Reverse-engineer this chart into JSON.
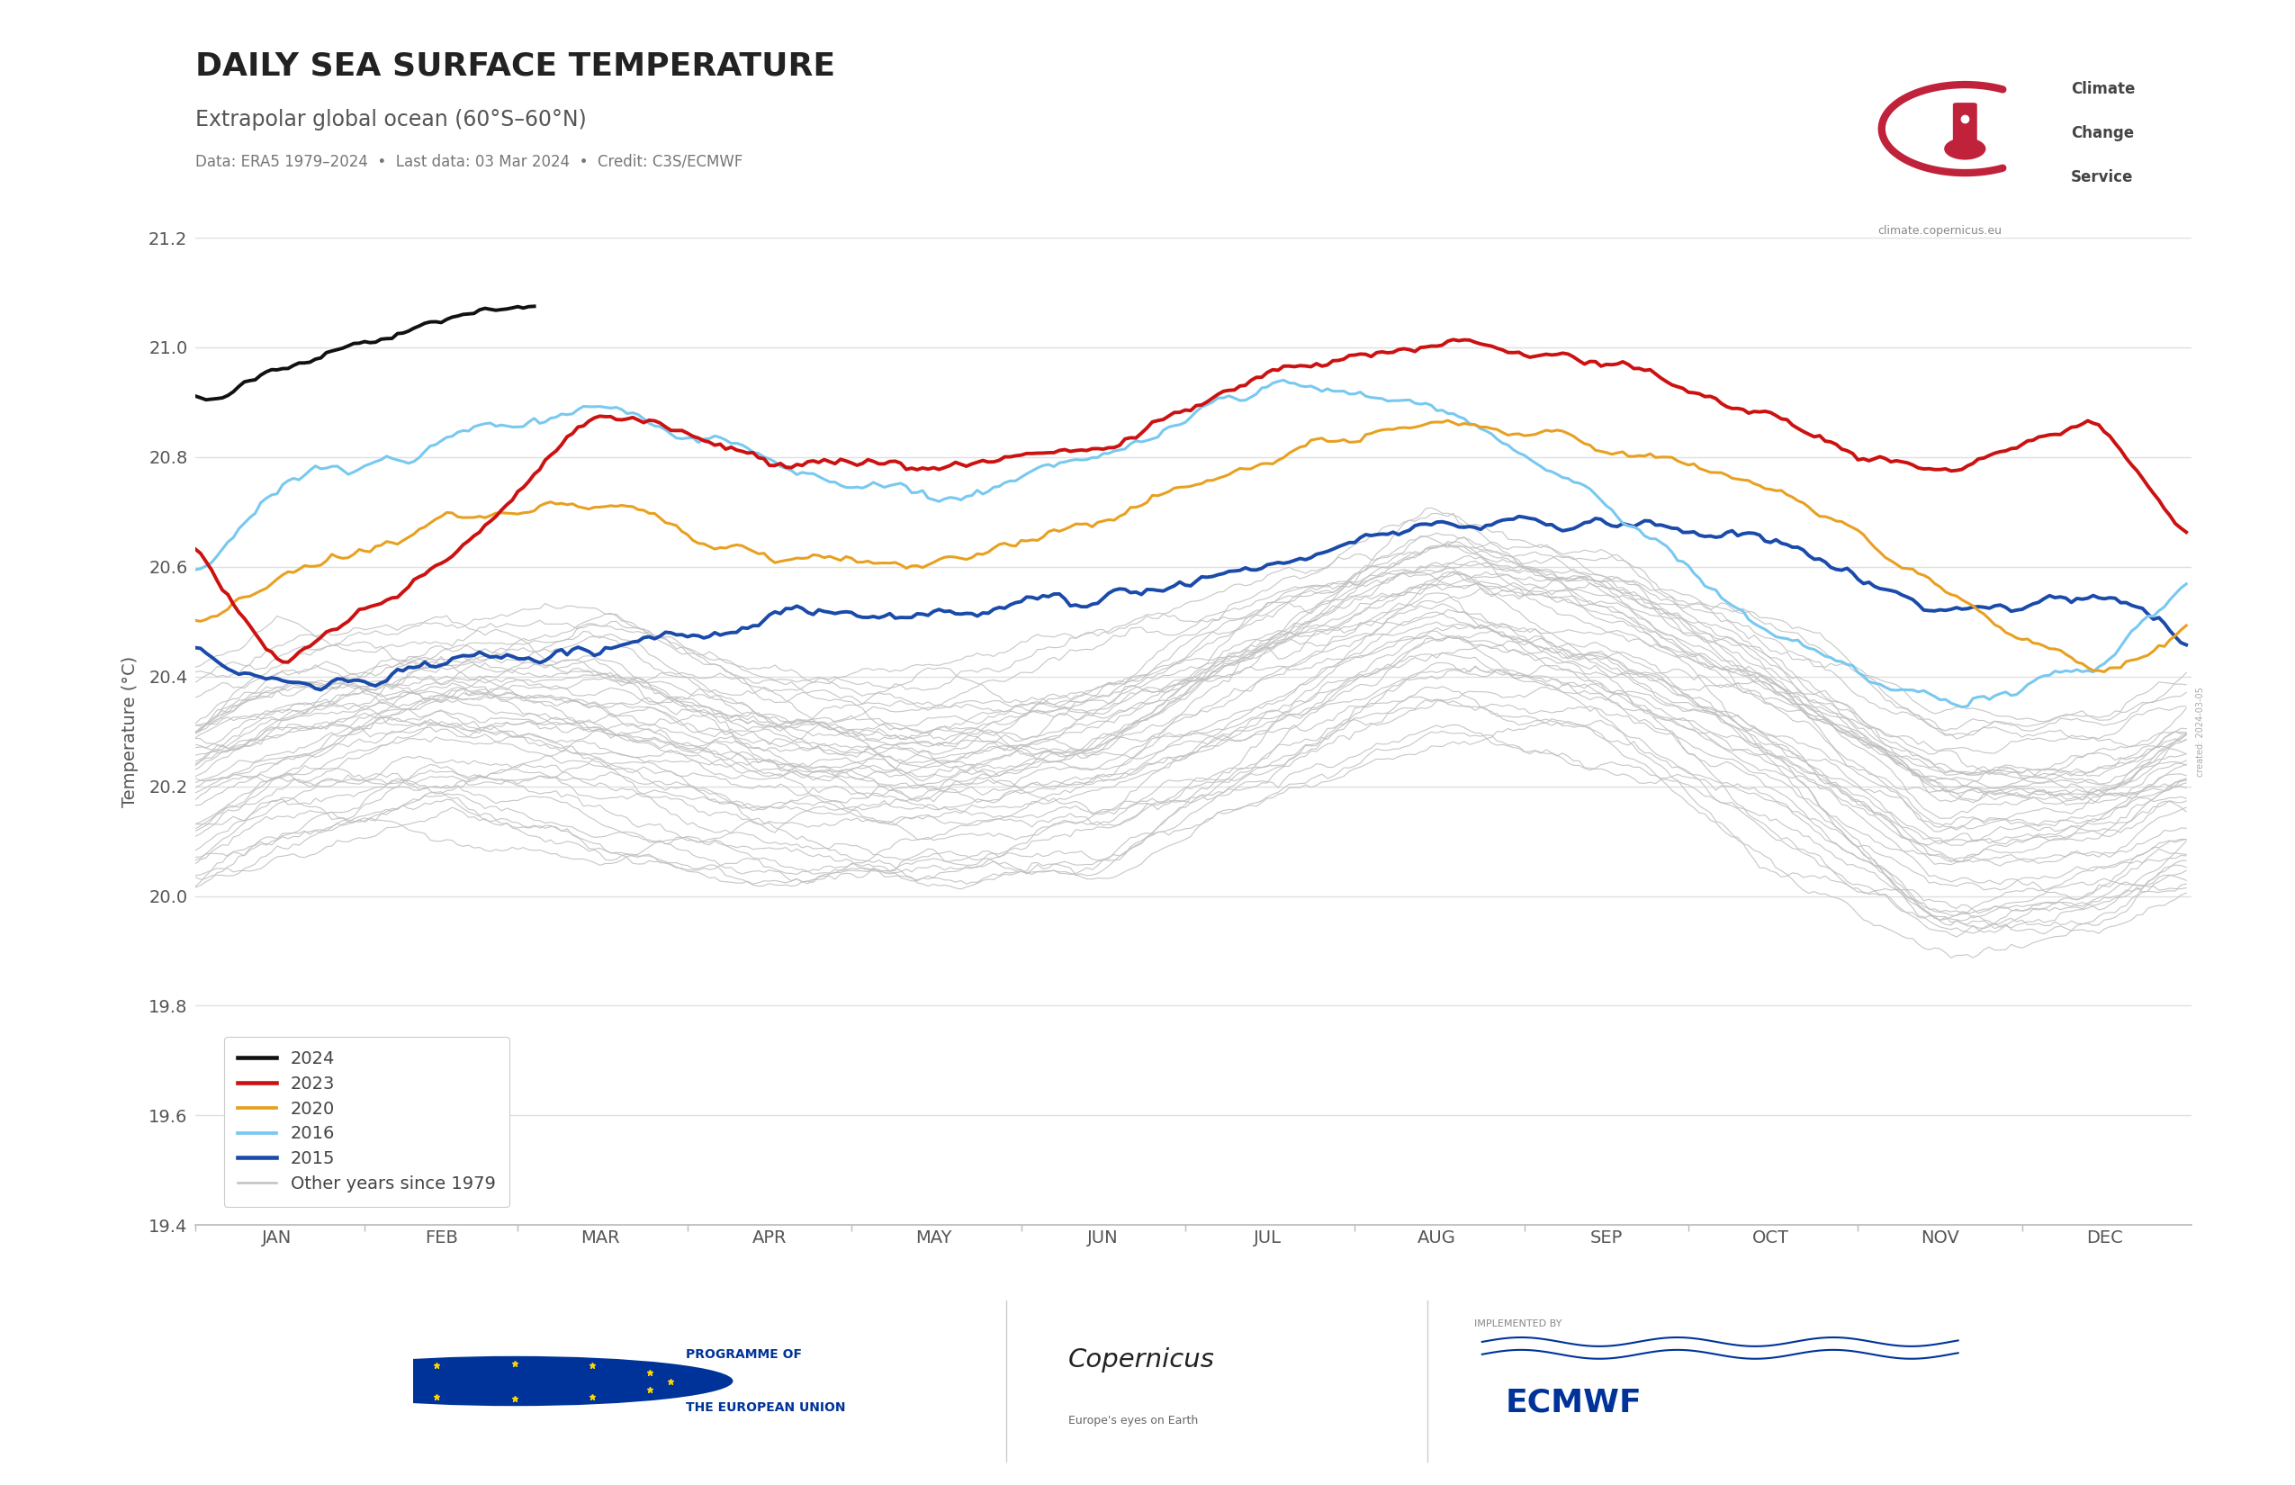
{
  "title": "DAILY SEA SURFACE TEMPERATURE",
  "subtitle": "Extrapolar global ocean (60°S–60°N)",
  "data_note": "Data: ERA5 1979–2024  •  Last data: 03 Mar 2024  •  Credit: C3S/ECMWF",
  "ylabel": "Temperature (°C)",
  "ylim": [
    19.4,
    21.2
  ],
  "yticks": [
    19.4,
    19.6,
    19.8,
    20.0,
    20.2,
    20.4,
    20.6,
    20.8,
    21.0,
    21.2
  ],
  "month_labels": [
    "JAN",
    "FEB",
    "MAR",
    "APR",
    "MAY",
    "JUN",
    "JUL",
    "AUG",
    "SEP",
    "OCT",
    "NOV",
    "DEC"
  ],
  "month_starts": [
    1,
    32,
    60,
    91,
    121,
    152,
    182,
    213,
    244,
    274,
    305,
    335
  ],
  "month_mids": [
    16,
    46,
    75,
    106,
    136,
    167,
    197,
    228,
    259,
    289,
    320,
    350
  ],
  "highlight_years": [
    "2024",
    "2023",
    "2020",
    "2016",
    "2015"
  ],
  "highlight_colors": [
    "#111111",
    "#cc1111",
    "#e8a020",
    "#78c8f0",
    "#1a4aaa"
  ],
  "highlight_linewidths": [
    2.8,
    2.8,
    2.2,
    2.2,
    2.8
  ],
  "other_color": "#c0c0c0",
  "other_linewidth": 0.8,
  "legend_labels": [
    "2024",
    "2023",
    "2020",
    "2016",
    "2015",
    "Other years since 1979"
  ],
  "background_color": "#ffffff",
  "grid_color": "#e0e0e0",
  "title_fontsize": 26,
  "subtitle_fontsize": 17,
  "note_fontsize": 12,
  "axis_label_fontsize": 14,
  "tick_fontsize": 14,
  "legend_fontsize": 14
}
